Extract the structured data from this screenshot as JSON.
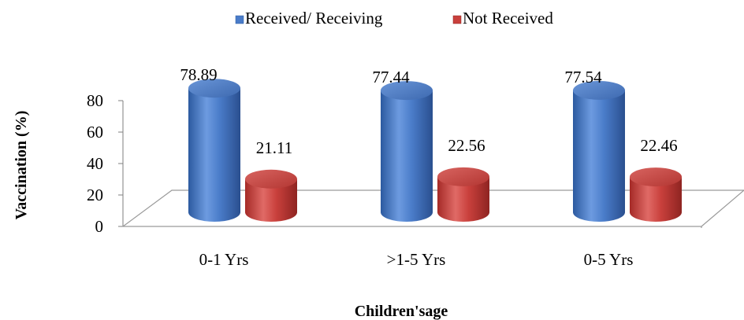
{
  "chart_data": {
    "type": "bar",
    "style": "3d-cylinder",
    "categories": [
      "0-1 Yrs",
      ">1-5 Yrs",
      "0-5 Yrs"
    ],
    "series": [
      {
        "name": "Received/ Receiving",
        "values": [
          78.89,
          77.44,
          77.54
        ],
        "color": "#4a7cc9",
        "labels": [
          "78.89",
          "77.44",
          "77.54"
        ]
      },
      {
        "name": "Not Received",
        "values": [
          21.11,
          22.56,
          22.46
        ],
        "color": "#c9403c",
        "labels": [
          "21.11",
          "22.56",
          "22.46"
        ]
      }
    ],
    "xlabel": "Children'sage",
    "ylabel": "Vaccination (%)",
    "yticks": [
      "0",
      "20",
      "40",
      "60",
      "80"
    ],
    "ylim": [
      0,
      80
    ],
    "grid": false,
    "legend_position": "top"
  }
}
